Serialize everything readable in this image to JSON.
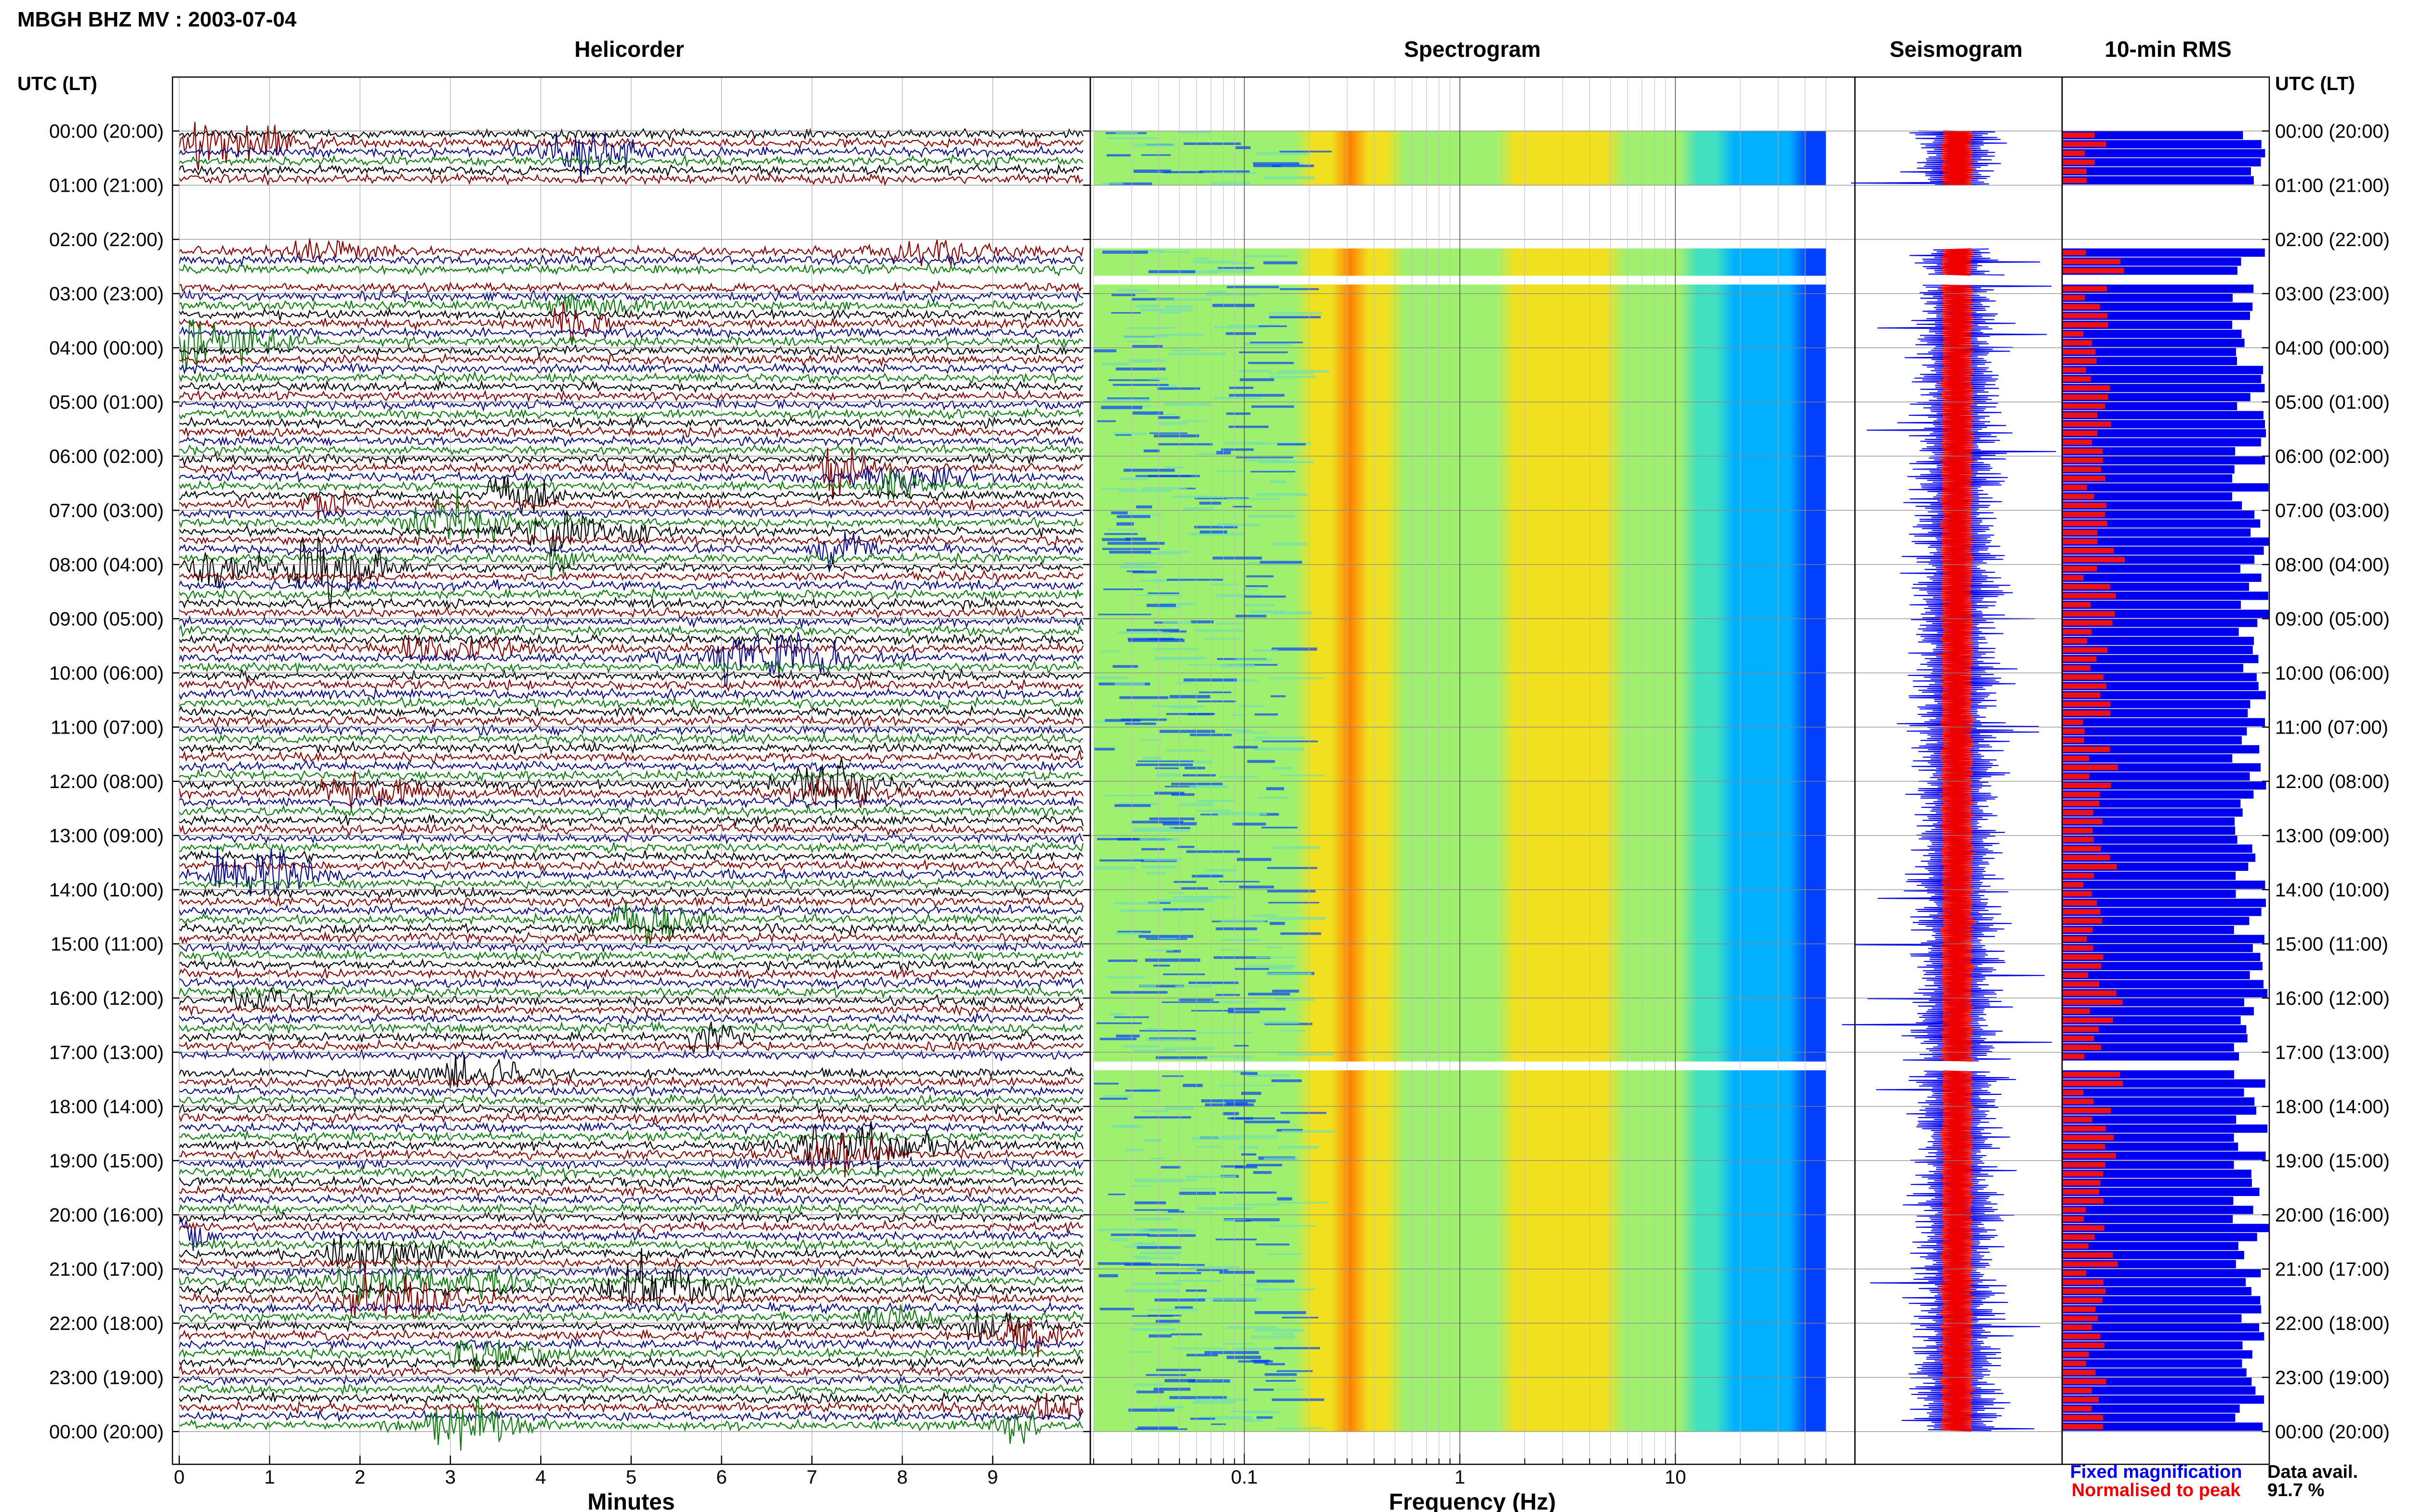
{
  "header": {
    "station_title": "MBGH BHZ MV : 2003-07-04",
    "utc_lt_label_left": "UTC (LT)",
    "utc_lt_label_right": "UTC (LT)"
  },
  "panels": {
    "helicorder_title": "Helicorder",
    "spectrogram_title": "Spectrogram",
    "seismogram_title": "Seismogram",
    "rms_title": "10-min RMS"
  },
  "footer": {
    "helicorder_xlabel": "Minutes",
    "spectrogram_xlabel": "Frequency (Hz)",
    "legend_fixed": "Fixed magnification",
    "legend_normalised": "Normalised to peak",
    "data_avail_label": "Data avail.",
    "data_avail_value": "91.7 %"
  },
  "colors": {
    "trace_black": "#000000",
    "trace_red": "#8b0000",
    "trace_blue": "#0a0a8c",
    "trace_green": "#0b7d0b",
    "legend_blue": "#0000ee",
    "legend_red": "#ee0000",
    "rms_blue": "#0000ee",
    "rms_red": "#ee1111",
    "spec_cold": "#00108c",
    "spec_hot": "#ff3000"
  },
  "chart_data": [
    {
      "type": "helicorder",
      "title": "Helicorder",
      "xlabel": "Minutes",
      "xlim": [
        0,
        10
      ],
      "x_ticks": [
        "0",
        "1",
        "2",
        "3",
        "4",
        "5",
        "6",
        "7",
        "8",
        "9"
      ],
      "y_ticks_utc_lt": [
        "00:00 (20:00)",
        "01:00 (21:00)",
        "02:00 (22:00)",
        "03:00 (23:00)",
        "04:00 (00:00)",
        "05:00 (01:00)",
        "06:00 (02:00)",
        "07:00 (03:00)",
        "08:00 (04:00)",
        "09:00 (05:00)",
        "10:00 (06:00)",
        "11:00 (07:00)",
        "12:00 (08:00)",
        "13:00 (09:00)",
        "14:00 (10:00)",
        "15:00 (11:00)",
        "16:00 (12:00)",
        "17:00 (13:00)",
        "18:00 (14:00)",
        "19:00 (15:00)",
        "20:00 (16:00)",
        "21:00 (17:00)",
        "22:00 (18:00)",
        "23:00 (19:00)",
        "00:00 (20:00)"
      ],
      "trace_color_cycle": [
        "black",
        "red",
        "blue",
        "green"
      ],
      "data_gaps_utc": [
        [
          "01:00",
          "02:10"
        ],
        [
          "02:40",
          "02:50"
        ],
        [
          "17:10",
          "17:20"
        ]
      ]
    },
    {
      "type": "spectrogram",
      "title": "Spectrogram",
      "xlabel": "Frequency (Hz)",
      "x_scale": "log",
      "xlim": [
        0.02,
        50
      ],
      "x_ticks": [
        "0.1",
        "1",
        "10"
      ],
      "peak_band_hz": [
        0.2,
        0.5
      ]
    },
    {
      "type": "seismogram",
      "title": "Seismogram",
      "series": [
        {
          "name": "Fixed magnification",
          "color": "blue"
        },
        {
          "name": "Normalised to peak",
          "color": "red"
        }
      ]
    },
    {
      "type": "bar",
      "title": "10-min RMS",
      "data_availability": "91.7 %"
    }
  ]
}
